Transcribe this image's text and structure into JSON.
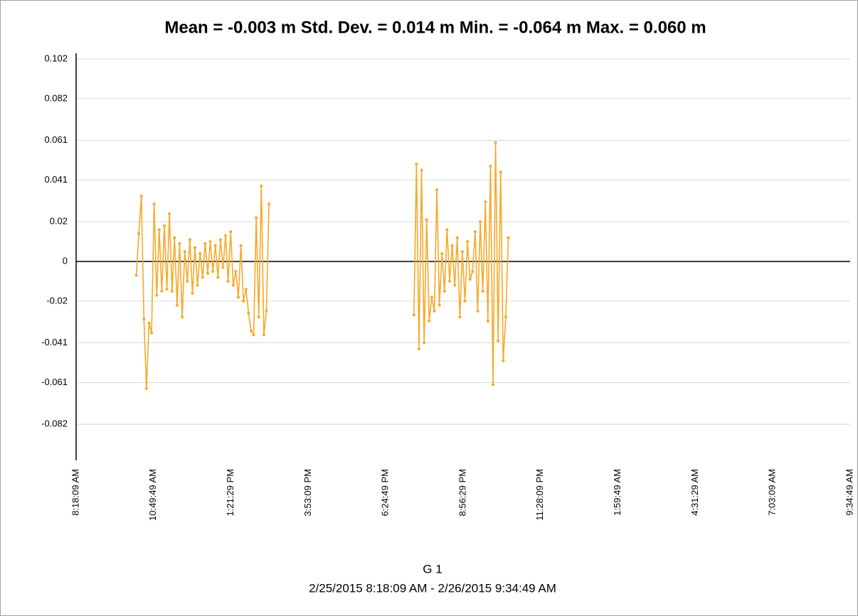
{
  "chart_data": {
    "type": "line",
    "title": "Mean = -0.003 m  Std. Dev. = 0.014 m  Min. = -0.064 m  Max. = 0.060 m",
    "x_label": "G 1",
    "subtitle": "2/25/2015 8:18:09 AM - 2/26/2015 9:34:49 AM",
    "color": "#f7a829",
    "x": [
      "2015-02-25T10:16:00",
      "2015-02-25T10:21:00",
      "2015-02-25T10:26:00",
      "2015-02-25T10:31:00",
      "2015-02-25T10:36:00",
      "2015-02-25T10:41:00",
      "2015-02-25T10:46:00",
      "2015-02-25T10:51:00",
      "2015-02-25T10:56:00",
      "2015-02-25T11:01:00",
      "2015-02-25T11:06:00",
      "2015-02-25T11:11:00",
      "2015-02-25T11:16:00",
      "2015-02-25T11:21:00",
      "2015-02-25T11:26:00",
      "2015-02-25T11:31:00",
      "2015-02-25T11:36:00",
      "2015-02-25T11:41:00",
      "2015-02-25T11:46:00",
      "2015-02-25T11:51:00",
      "2015-02-25T11:56:00",
      "2015-02-25T12:01:00",
      "2015-02-25T12:06:00",
      "2015-02-25T12:11:00",
      "2015-02-25T12:16:00",
      "2015-02-25T12:21:00",
      "2015-02-25T12:26:00",
      "2015-02-25T12:31:00",
      "2015-02-25T12:36:00",
      "2015-02-25T12:41:00",
      "2015-02-25T12:46:00",
      "2015-02-25T12:51:00",
      "2015-02-25T12:56:00",
      "2015-02-25T13:01:00",
      "2015-02-25T13:06:00",
      "2015-02-25T13:11:00",
      "2015-02-25T13:16:00",
      "2015-02-25T13:21:00",
      "2015-02-25T13:26:00",
      "2015-02-25T13:31:00",
      "2015-02-25T13:36:00",
      "2015-02-25T13:41:00",
      "2015-02-25T13:46:00",
      "2015-02-25T13:51:00",
      "2015-02-25T13:56:00",
      "2015-02-25T14:01:00",
      "2015-02-25T14:06:00",
      "2015-02-25T14:11:00",
      "2015-02-25T14:16:00",
      "2015-02-25T14:21:00",
      "2015-02-25T14:26:00",
      "2015-02-25T14:31:00",
      "2015-02-25T14:36:00",
      "2015-02-25T17:00:00",
      "2015-02-25T19:20:00",
      "2015-02-25T19:25:00",
      "2015-02-25T19:30:00",
      "2015-02-25T19:35:00",
      "2015-02-25T19:40:00",
      "2015-02-25T19:45:00",
      "2015-02-25T19:50:00",
      "2015-02-25T19:55:00",
      "2015-02-25T20:00:00",
      "2015-02-25T20:05:00",
      "2015-02-25T20:10:00",
      "2015-02-25T20:15:00",
      "2015-02-25T20:20:00",
      "2015-02-25T20:25:00",
      "2015-02-25T20:30:00",
      "2015-02-25T20:35:00",
      "2015-02-25T20:40:00",
      "2015-02-25T20:45:00",
      "2015-02-25T20:50:00",
      "2015-02-25T20:55:00",
      "2015-02-25T21:00:00",
      "2015-02-25T21:05:00",
      "2015-02-25T21:10:00",
      "2015-02-25T21:15:00",
      "2015-02-25T21:20:00",
      "2015-02-25T21:25:00",
      "2015-02-25T21:30:00",
      "2015-02-25T21:35:00",
      "2015-02-25T21:40:00",
      "2015-02-25T21:45:00",
      "2015-02-25T21:50:00",
      "2015-02-25T21:55:00",
      "2015-02-25T22:00:00",
      "2015-02-25T22:05:00",
      "2015-02-25T22:10:00",
      "2015-02-25T22:15:00",
      "2015-02-25T22:20:00",
      "2015-02-25T22:25:00"
    ],
    "values": [
      -0.007,
      0.014,
      0.033,
      -0.029,
      -0.064,
      -0.031,
      -0.036,
      0.029,
      -0.017,
      0.016,
      -0.015,
      0.018,
      -0.014,
      0.024,
      -0.015,
      0.012,
      -0.022,
      0.009,
      -0.028,
      0.005,
      -0.01,
      0.011,
      -0.016,
      0.007,
      -0.012,
      0.004,
      -0.008,
      0.009,
      -0.006,
      0.01,
      -0.005,
      0.008,
      -0.008,
      0.011,
      -0.003,
      0.013,
      -0.01,
      0.015,
      -0.012,
      -0.005,
      -0.018,
      0.008,
      -0.02,
      -0.014,
      -0.026,
      -0.035,
      -0.037,
      0.022,
      -0.028,
      0.038,
      -0.037,
      -0.025,
      0.029,
      null,
      -0.027,
      0.049,
      -0.044,
      0.046,
      -0.041,
      0.021,
      -0.03,
      -0.018,
      -0.025,
      0.036,
      -0.022,
      0.004,
      -0.015,
      0.016,
      -0.01,
      0.008,
      -0.012,
      0.012,
      -0.028,
      0.005,
      -0.02,
      0.01,
      -0.009,
      -0.005,
      0.015,
      -0.025,
      0.02,
      -0.015,
      0.03,
      -0.03,
      0.048,
      -0.062,
      0.06,
      -0.04,
      0.045,
      -0.05,
      -0.028,
      0.012
    ],
    "xlim": [
      "2015-02-25T08:18:09",
      "2015-02-26T09:34:49"
    ],
    "xticks": [
      {
        "value": "2015-02-25T08:18:09",
        "label": "8:18:09 AM"
      },
      {
        "value": "2015-02-25T10:49:49",
        "label": "10:49:49 AM"
      },
      {
        "value": "2015-02-25T13:21:29",
        "label": "1:21:29 PM"
      },
      {
        "value": "2015-02-25T15:53:09",
        "label": "3:53:09 PM"
      },
      {
        "value": "2015-02-25T18:24:49",
        "label": "6:24:49 PM"
      },
      {
        "value": "2015-02-25T20:56:29",
        "label": "8:56:29 PM"
      },
      {
        "value": "2015-02-25T23:28:09",
        "label": "11:28:09 PM"
      },
      {
        "value": "2015-02-26T01:59:49",
        "label": "1:59:49 AM"
      },
      {
        "value": "2015-02-26T04:31:29",
        "label": "4:31:29 AM"
      },
      {
        "value": "2015-02-26T07:03:09",
        "label": "7:03:09 AM"
      },
      {
        "value": "2015-02-26T09:34:49",
        "label": "9:34:49 AM"
      }
    ],
    "ylim": [
      -0.102,
      0.102
    ],
    "yticks": [
      0.102,
      0.082,
      0.061,
      0.041,
      0.02,
      0,
      -0.02,
      -0.041,
      -0.061,
      -0.082
    ],
    "grid": true
  }
}
